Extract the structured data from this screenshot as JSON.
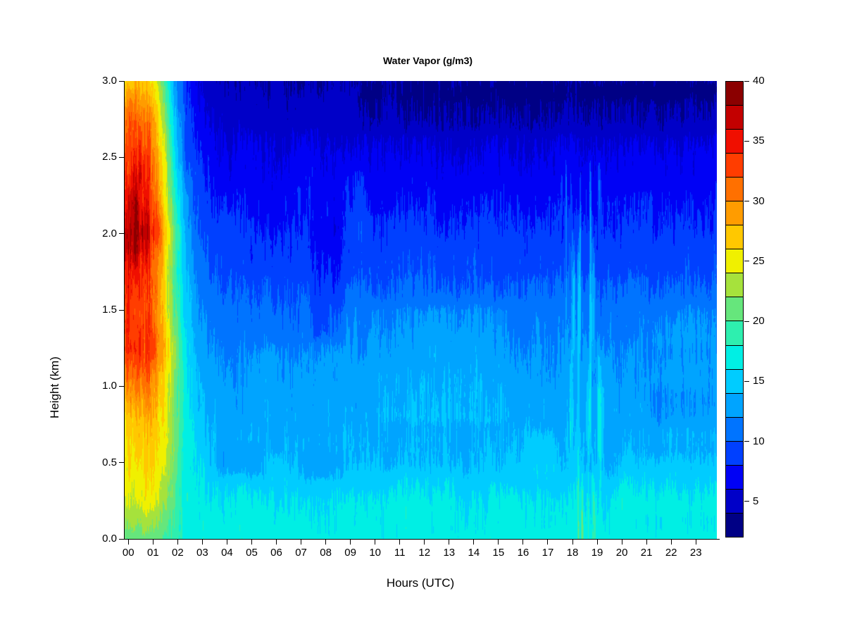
{
  "title": "Water Vapor (g/m3)",
  "x_axis": {
    "label": "Hours (UTC)",
    "ticks": [
      "00",
      "01",
      "02",
      "03",
      "04",
      "05",
      "06",
      "07",
      "08",
      "09",
      "10",
      "11",
      "12",
      "13",
      "14",
      "15",
      "16",
      "17",
      "18",
      "19",
      "20",
      "21",
      "22",
      "23"
    ]
  },
  "y_axis": {
    "label": "Height (km)",
    "ticks": [
      "0.0",
      "0.5",
      "1.0",
      "1.5",
      "2.0",
      "2.5",
      "3.0"
    ],
    "tick_values": [
      0.0,
      0.5,
      1.0,
      1.5,
      2.0,
      2.5,
      3.0
    ]
  },
  "colorbar": {
    "tick_labels": [
      "5",
      "10",
      "15",
      "20",
      "25",
      "30",
      "35",
      "40"
    ],
    "tick_values": [
      5,
      10,
      15,
      20,
      25,
      30,
      35,
      40
    ],
    "value_min": 2,
    "value_max": 40,
    "level_step": 2,
    "colors_low_to_high": [
      "#000085",
      "#0000C8",
      "#0001F5",
      "#0040FF",
      "#0074FF",
      "#00A4FF",
      "#00CCFF",
      "#00EFE4",
      "#2EEFAF",
      "#66E67C",
      "#A6E23C",
      "#F0F000",
      "#FFC800",
      "#FF9C00",
      "#FF7000",
      "#FF3D00",
      "#F00F00",
      "#C30000",
      "#8B0000"
    ]
  },
  "chart_data": {
    "type": "heatmap",
    "title": "Water Vapor (g/m3)",
    "xlabel": "Hours (UTC)",
    "ylabel": "Height (km)",
    "x_range_hours": [
      0,
      24
    ],
    "x_step_hours": 0.5,
    "y_range_km": [
      0,
      3
    ],
    "y_step_km": 0.25,
    "units": "g/m3",
    "value_levels": [
      2,
      40
    ],
    "grid_note": "rows bottom(0 km) to top(3 km); columns hours 0,0.5,1,... ; short rows repeat last value to hour 24",
    "values": [
      [
        20.5,
        21,
        21,
        20.5,
        19,
        17.5,
        17,
        17
      ],
      [
        24,
        24.5,
        24.5,
        23,
        20.5,
        17.5,
        16.5,
        16
      ],
      [
        25.5,
        26,
        26,
        25,
        21.5,
        17,
        15.5,
        14.5,
        14
      ],
      [
        26,
        27,
        27,
        26,
        21.5,
        17,
        14.5,
        13.6,
        13.4
      ],
      [
        29,
        30,
        29.5,
        27,
        22,
        16.5,
        14,
        13.2,
        12.8
      ],
      [
        33,
        34,
        33,
        29,
        23,
        16,
        13,
        12.4,
        12
      ],
      [
        32,
        33,
        32,
        28,
        21,
        15,
        12,
        11.4,
        11
      ],
      [
        33,
        34,
        33,
        28,
        20,
        14,
        11,
        10.2,
        9.6
      ],
      [
        37,
        38,
        36,
        30,
        21,
        13,
        10,
        9.2,
        8.6
      ],
      [
        35,
        36,
        34,
        28,
        19,
        12,
        9,
        8,
        7.4
      ],
      [
        33,
        34,
        33,
        27,
        17,
        10,
        8,
        7,
        6.3
      ],
      [
        31,
        32,
        31,
        25,
        15,
        9,
        6.5,
        5.8,
        5.1
      ],
      [
        27,
        28,
        27,
        22,
        13,
        8,
        5.5,
        4.8,
        4.1
      ]
    ],
    "anomaly_patches": [
      {
        "t": [
          3.4,
          5.7
        ],
        "h": [
          0.36,
          0.68
        ],
        "d": -1.1
      },
      {
        "t": [
          6.9,
          9.2
        ],
        "h": [
          0.33,
          0.62
        ],
        "d": -0.9
      },
      {
        "t": [
          7.3,
          9.0
        ],
        "h": [
          1.25,
          2.15
        ],
        "d": -1.2
      },
      {
        "t": [
          4.8,
          9.3
        ],
        "h": [
          1.2,
          2.3
        ],
        "d": -0.5
      },
      {
        "t": [
          8.55,
          9.95
        ],
        "h": [
          1.9,
          2.5
        ],
        "d": 0.9
      },
      {
        "t": [
          9.6,
          15.7
        ],
        "h": [
          0.7,
          1.6
        ],
        "d": 0.9
      },
      {
        "t": [
          10.3,
          13.7
        ],
        "h": [
          0.05,
          0.5
        ],
        "d": 0.6
      },
      {
        "t": [
          4.4,
          6.2
        ],
        "h": [
          0.0,
          0.4
        ],
        "d": 0.5
      },
      {
        "t": [
          5.6,
          6.9
        ],
        "h": [
          0.3,
          0.6
        ],
        "d": 0.5
      },
      {
        "t": [
          16.0,
          17.75
        ],
        "h": [
          0.35,
          0.75
        ],
        "d": 1.1
      },
      {
        "t": [
          19.8,
          24.2
        ],
        "h": [
          0.1,
          0.6
        ],
        "d": 0.8
      },
      {
        "t": [
          21.2,
          24.2
        ],
        "h": [
          0.7,
          1.05
        ],
        "d": -0.9
      },
      {
        "t": [
          21.0,
          24.0
        ],
        "h": [
          1.2,
          1.6
        ],
        "d": 0.7
      },
      {
        "t": [
          19.4,
          20.4
        ],
        "h": [
          0.3,
          0.75
        ],
        "d": -0.5
      },
      {
        "t": [
          9.3,
          24.2
        ],
        "h": [
          2.6,
          3.05
        ],
        "d": -0.9
      },
      {
        "t": [
          18.5,
          24.2
        ],
        "h": [
          2.82,
          3.05
        ],
        "d": -0.5
      }
    ],
    "moist_plumes": [
      {
        "t": [
          17.55,
          19.45
        ],
        "h_top": 2.6,
        "gain": 11,
        "thresh": 0.55,
        "freq": 0.35
      },
      {
        "t": [
          9.1,
          9.55
        ],
        "h_top": 1.65,
        "gain": 7,
        "thresh": 0.55,
        "freq": 0.35
      }
    ],
    "texture_noise": {
      "octaves": [
        {
          "xs": 0.97,
          "ys": 0.0238,
          "w": 1.45
        },
        {
          "xs": 0.31,
          "ys": 0.00833,
          "w": 0.85
        },
        {
          "xs": 0.043,
          "ys": 0.00476,
          "w": 0.8
        },
        {
          "xs": 1.9,
          "ys": 0.143,
          "w": 0.55
        }
      ],
      "amp_base": 1.05,
      "amp_value_gain": 0.1
    }
  }
}
